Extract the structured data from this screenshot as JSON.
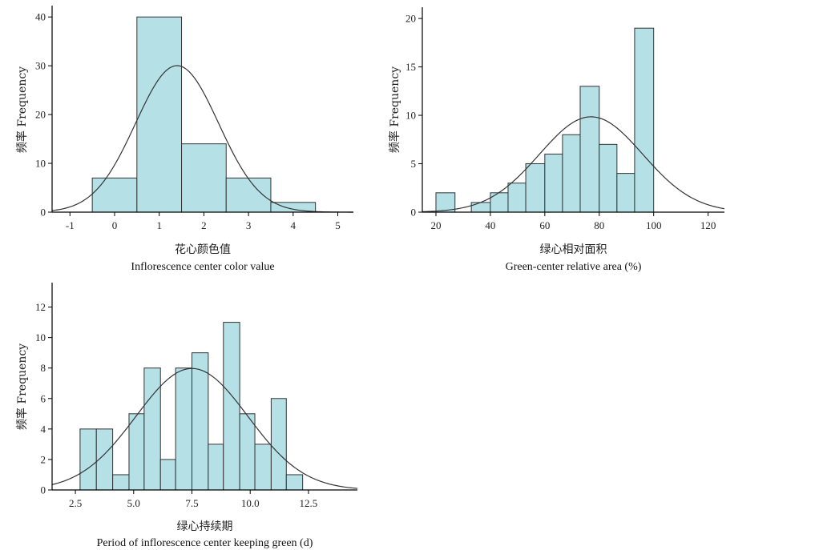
{
  "chart_data": [
    {
      "type": "bar",
      "bars": [
        {
          "x0": -0.5,
          "x1": 0.5,
          "value": 7
        },
        {
          "x0": 0.5,
          "x1": 1.5,
          "value": 40
        },
        {
          "x0": 1.5,
          "x1": 2.5,
          "value": 14
        },
        {
          "x0": 2.5,
          "x1": 3.5,
          "value": 7
        },
        {
          "x0": 3.5,
          "x1": 4.5,
          "value": 2
        }
      ],
      "normal_curve": {
        "mean": 1.4,
        "sd": 0.93,
        "n": 70,
        "bin_width": 1.0
      },
      "xlim": [
        -1.4,
        5.35
      ],
      "ylim": [
        0,
        42
      ],
      "xticks": [
        -1,
        0,
        1,
        2,
        3,
        4,
        5
      ],
      "xtick_labels": [
        "-1",
        "0",
        "1",
        "2",
        "3",
        "4",
        "5"
      ],
      "yticks": [
        0,
        10,
        20,
        30,
        40
      ],
      "ylabel": "频率 Frequency",
      "xlabel_cn": "花心颜色值",
      "xlabel_en": "Inflorescence center color value"
    },
    {
      "type": "bar",
      "bars": [
        {
          "x0": 20,
          "x1": 27,
          "value": 2
        },
        {
          "x0": 33,
          "x1": 40,
          "value": 1
        },
        {
          "x0": 40,
          "x1": 46.5,
          "value": 2
        },
        {
          "x0": 46.5,
          "x1": 53,
          "value": 3
        },
        {
          "x0": 53,
          "x1": 60,
          "value": 5
        },
        {
          "x0": 60,
          "x1": 66.5,
          "value": 6
        },
        {
          "x0": 66.5,
          "x1": 73,
          "value": 8
        },
        {
          "x0": 73,
          "x1": 80,
          "value": 13
        },
        {
          "x0": 80,
          "x1": 86.5,
          "value": 7
        },
        {
          "x0": 86.5,
          "x1": 93,
          "value": 4
        },
        {
          "x0": 93,
          "x1": 100,
          "value": 19
        }
      ],
      "normal_curve": {
        "mean": 77,
        "sd": 19,
        "n": 70,
        "bin_width": 6.7
      },
      "xlim": [
        15,
        126
      ],
      "ylim": [
        0,
        21
      ],
      "xticks": [
        20,
        40,
        60,
        80,
        100,
        120
      ],
      "xtick_labels": [
        "20",
        "40",
        "60",
        "80",
        "100",
        "120"
      ],
      "yticks": [
        0,
        5,
        10,
        15,
        20
      ],
      "ylabel": "频率 Frequency",
      "xlabel_cn": "绿心相对面积",
      "xlabel_en": "Green-center relative area (%)"
    },
    {
      "type": "bar",
      "bars": [
        {
          "x0": 2.7,
          "x1": 3.4,
          "value": 4
        },
        {
          "x0": 3.4,
          "x1": 4.1,
          "value": 4
        },
        {
          "x0": 4.1,
          "x1": 4.8,
          "value": 1
        },
        {
          "x0": 4.8,
          "x1": 5.45,
          "value": 5
        },
        {
          "x0": 5.45,
          "x1": 6.15,
          "value": 8
        },
        {
          "x0": 6.15,
          "x1": 6.8,
          "value": 2
        },
        {
          "x0": 6.8,
          "x1": 7.5,
          "value": 8
        },
        {
          "x0": 7.5,
          "x1": 8.2,
          "value": 9
        },
        {
          "x0": 8.2,
          "x1": 8.85,
          "value": 3
        },
        {
          "x0": 8.85,
          "x1": 9.55,
          "value": 11
        },
        {
          "x0": 9.55,
          "x1": 10.2,
          "value": 5
        },
        {
          "x0": 10.2,
          "x1": 10.9,
          "value": 3
        },
        {
          "x0": 10.9,
          "x1": 11.55,
          "value": 6
        },
        {
          "x0": 11.55,
          "x1": 12.25,
          "value": 1
        }
      ],
      "normal_curve": {
        "mean": 7.5,
        "sd": 2.4,
        "n": 70,
        "bin_width": 0.685
      },
      "xlim": [
        1.5,
        14.6
      ],
      "ylim": [
        0,
        13.5
      ],
      "xticks": [
        2.5,
        5.0,
        7.5,
        10.0,
        12.5
      ],
      "xtick_labels": [
        "2.5",
        "5.0",
        "7.5",
        "10.0",
        "12.5"
      ],
      "yticks": [
        0,
        2,
        4,
        6,
        8,
        10,
        12
      ],
      "ylabel": "频率 Frequency",
      "xlabel_cn": "绿心持续期",
      "xlabel_en": "Period of inflorescence center keeping green (d)"
    }
  ]
}
